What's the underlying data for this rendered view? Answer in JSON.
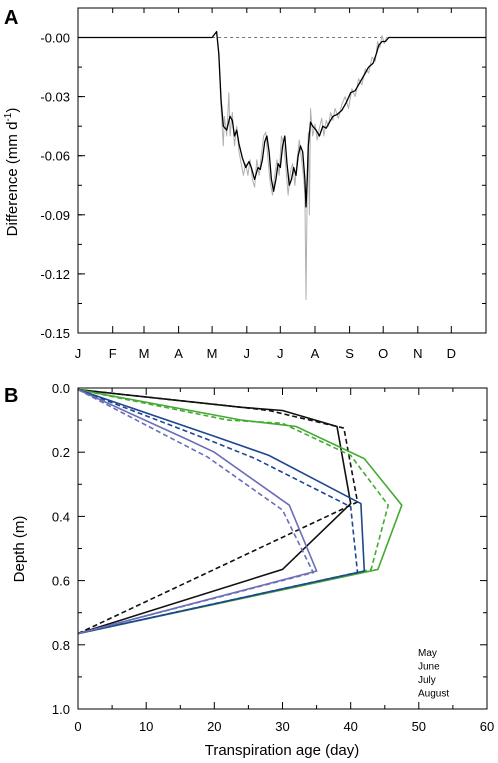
{
  "chart_data": [
    {
      "panel_label": "A",
      "type": "line",
      "ylabel_main": "Difference (mm d",
      "ylabel_sup": "-1",
      "ylabel_close": ")",
      "ylim": [
        -0.15,
        0.015
      ],
      "yticks": [
        {
          "v": 0.0,
          "label": "-0.00"
        },
        {
          "v": -0.03,
          "label": "-0.03"
        },
        {
          "v": -0.06,
          "label": "-0.06"
        },
        {
          "v": -0.09,
          "label": "-0.09"
        },
        {
          "v": -0.12,
          "label": "-0.12"
        },
        {
          "v": -0.15,
          "label": "-0.15"
        }
      ],
      "x_range_days": [
        0,
        365
      ],
      "month_labels": [
        "J",
        "F",
        "M",
        "A",
        "M",
        "J",
        "J",
        "A",
        "S",
        "O",
        "N",
        "D"
      ],
      "month_tick_days": [
        0,
        31,
        59,
        90,
        120,
        151,
        181,
        212,
        243,
        273,
        304,
        334
      ],
      "zero_reference": {
        "style": "dashed",
        "x_from": 120,
        "x_to": 300,
        "y": 0.0
      },
      "series": [
        {
          "style": "smoothed",
          "color": "#000000",
          "points": [
            [
              0,
              0
            ],
            [
              120,
              0
            ],
            [
              124,
              0.003
            ],
            [
              126,
              -0.008
            ],
            [
              128,
              -0.032
            ],
            [
              130,
              -0.045
            ],
            [
              133,
              -0.047
            ],
            [
              136,
              -0.04
            ],
            [
              138,
              -0.042
            ],
            [
              140,
              -0.05
            ],
            [
              142,
              -0.047
            ],
            [
              144,
              -0.054
            ],
            [
              147,
              -0.061
            ],
            [
              150,
              -0.066
            ],
            [
              153,
              -0.063
            ],
            [
              155,
              -0.066
            ],
            [
              158,
              -0.072
            ],
            [
              161,
              -0.066
            ],
            [
              163,
              -0.067
            ],
            [
              165,
              -0.062
            ],
            [
              167,
              -0.053
            ],
            [
              169,
              -0.05
            ],
            [
              171,
              -0.058
            ],
            [
              173,
              -0.072
            ],
            [
              175,
              -0.078
            ],
            [
              177,
              -0.072
            ],
            [
              179,
              -0.064
            ],
            [
              181,
              -0.066
            ],
            [
              183,
              -0.055
            ],
            [
              185,
              -0.05
            ],
            [
              187,
              -0.064
            ],
            [
              189,
              -0.075
            ],
            [
              191,
              -0.072
            ],
            [
              193,
              -0.066
            ],
            [
              195,
              -0.07
            ],
            [
              197,
              -0.06
            ],
            [
              199,
              -0.055
            ],
            [
              201,
              -0.058
            ],
            [
              203,
              -0.072
            ],
            [
              204,
              -0.086
            ],
            [
              205,
              -0.072
            ],
            [
              206,
              -0.055
            ],
            [
              208,
              -0.043
            ],
            [
              210,
              -0.045
            ],
            [
              213,
              -0.047
            ],
            [
              216,
              -0.05
            ],
            [
              219,
              -0.045
            ],
            [
              222,
              -0.046
            ],
            [
              225,
              -0.043
            ],
            [
              228,
              -0.04
            ],
            [
              232,
              -0.039
            ],
            [
              236,
              -0.037
            ],
            [
              240,
              -0.033
            ],
            [
              244,
              -0.028
            ],
            [
              248,
              -0.027
            ],
            [
              252,
              -0.023
            ],
            [
              256,
              -0.019
            ],
            [
              260,
              -0.015
            ],
            [
              264,
              -0.013
            ],
            [
              267,
              -0.008
            ],
            [
              269,
              -0.004
            ],
            [
              272,
              -0.002
            ],
            [
              275,
              -0.002
            ],
            [
              278,
              0
            ],
            [
              365,
              0
            ]
          ]
        },
        {
          "style": "daily",
          "color": "#b0b0b0",
          "points": [
            [
              120,
              0
            ],
            [
              124,
              0.003
            ],
            [
              126,
              -0.01
            ],
            [
              128,
              -0.036
            ],
            [
              130,
              -0.055
            ],
            [
              131,
              -0.04
            ],
            [
              133,
              -0.05
            ],
            [
              135,
              -0.028
            ],
            [
              136,
              -0.05
            ],
            [
              138,
              -0.038
            ],
            [
              140,
              -0.055
            ],
            [
              142,
              -0.045
            ],
            [
              144,
              -0.058
            ],
            [
              146,
              -0.064
            ],
            [
              148,
              -0.07
            ],
            [
              150,
              -0.064
            ],
            [
              152,
              -0.07
            ],
            [
              154,
              -0.062
            ],
            [
              156,
              -0.072
            ],
            [
              158,
              -0.076
            ],
            [
              160,
              -0.062
            ],
            [
              162,
              -0.07
            ],
            [
              164,
              -0.06
            ],
            [
              166,
              -0.05
            ],
            [
              168,
              -0.048
            ],
            [
              170,
              -0.062
            ],
            [
              172,
              -0.074
            ],
            [
              174,
              -0.08
            ],
            [
              176,
              -0.07
            ],
            [
              178,
              -0.062
            ],
            [
              180,
              -0.07
            ],
            [
              182,
              -0.05
            ],
            [
              184,
              -0.054
            ],
            [
              186,
              -0.066
            ],
            [
              188,
              -0.08
            ],
            [
              190,
              -0.068
            ],
            [
              192,
              -0.064
            ],
            [
              194,
              -0.075
            ],
            [
              196,
              -0.062
            ],
            [
              198,
              -0.052
            ],
            [
              200,
              -0.062
            ],
            [
              202,
              -0.072
            ],
            [
              203,
              -0.08
            ],
            [
              204,
              -0.133
            ],
            [
              205,
              -0.078
            ],
            [
              206,
              -0.048
            ],
            [
              207,
              -0.09
            ],
            [
              208,
              -0.036
            ],
            [
              210,
              -0.05
            ],
            [
              212,
              -0.044
            ],
            [
              214,
              -0.052
            ],
            [
              216,
              -0.046
            ],
            [
              218,
              -0.041
            ],
            [
              220,
              -0.05
            ],
            [
              222,
              -0.042
            ],
            [
              224,
              -0.045
            ],
            [
              226,
              -0.038
            ],
            [
              228,
              -0.042
            ],
            [
              230,
              -0.036
            ],
            [
              233,
              -0.041
            ],
            [
              236,
              -0.034
            ],
            [
              239,
              -0.03
            ],
            [
              242,
              -0.036
            ],
            [
              245,
              -0.026
            ],
            [
              248,
              -0.03
            ],
            [
              251,
              -0.021
            ],
            [
              254,
              -0.024
            ],
            [
              257,
              -0.016
            ],
            [
              260,
              -0.018
            ],
            [
              263,
              -0.01
            ],
            [
              266,
              -0.012
            ],
            [
              268,
              -0.002
            ],
            [
              270,
              -0.005
            ],
            [
              272,
              0.001
            ],
            [
              274,
              -0.003
            ],
            [
              276,
              0
            ],
            [
              278,
              0
            ]
          ]
        }
      ]
    },
    {
      "panel_label": "B",
      "type": "line",
      "xlabel": "Transpiration age (day)",
      "ylabel": "Depth (m)",
      "xlim": [
        0,
        60
      ],
      "ylim": [
        0,
        1.0
      ],
      "xticks": [
        {
          "v": 0,
          "label": "0"
        },
        {
          "v": 10,
          "label": "10"
        },
        {
          "v": 20,
          "label": "20"
        },
        {
          "v": 30,
          "label": "30"
        },
        {
          "v": 40,
          "label": "40"
        },
        {
          "v": 50,
          "label": "50"
        },
        {
          "v": 60,
          "label": "60"
        }
      ],
      "yticks": [
        {
          "v": 0.0,
          "label": "0.0"
        },
        {
          "v": 0.2,
          "label": "0.2"
        },
        {
          "v": 0.4,
          "label": "0.4"
        },
        {
          "v": 0.6,
          "label": "0.6"
        },
        {
          "v": 0.8,
          "label": "0.8"
        },
        {
          "v": 1.0,
          "label": "1.0"
        }
      ],
      "legend_placement": "bottom-right",
      "series": [
        {
          "name": "May",
          "color": "#111111",
          "dash": false,
          "points": [
            [
              0,
              0.005
            ],
            [
              24,
              0.06
            ],
            [
              30,
              0.07
            ],
            [
              38,
              0.12
            ],
            [
              40,
              0.36
            ],
            [
              30,
              0.565
            ],
            [
              0,
              0.765
            ]
          ]
        },
        {
          "name": "May",
          "color": "#111111",
          "dash": true,
          "points": [
            [
              0,
              0.005
            ],
            [
              24,
              0.06
            ],
            [
              28,
              0.07
            ],
            [
              39,
              0.125
            ],
            [
              41,
              0.355
            ],
            [
              0,
              0.765
            ]
          ]
        },
        {
          "name": "June",
          "color": "#44aa33",
          "dash": false,
          "points": [
            [
              0,
              0.005
            ],
            [
              24,
              0.1
            ],
            [
              32,
              0.12
            ],
            [
              42,
              0.22
            ],
            [
              47.5,
              0.365
            ],
            [
              44,
              0.565
            ],
            [
              0,
              0.765
            ]
          ]
        },
        {
          "name": "June",
          "color": "#44aa33",
          "dash": true,
          "points": [
            [
              0,
              0.005
            ],
            [
              22,
              0.1
            ],
            [
              30,
              0.11
            ],
            [
              40,
              0.21
            ],
            [
              45.5,
              0.365
            ],
            [
              43,
              0.565
            ],
            [
              0,
              0.765
            ]
          ]
        },
        {
          "name": "July",
          "color": "#1f4690",
          "dash": false,
          "points": [
            [
              0,
              0.005
            ],
            [
              20,
              0.15
            ],
            [
              28,
              0.21
            ],
            [
              41.5,
              0.36
            ],
            [
              42,
              0.57
            ],
            [
              0,
              0.765
            ]
          ]
        },
        {
          "name": "July",
          "color": "#1f4690",
          "dash": true,
          "points": [
            [
              0,
              0.005
            ],
            [
              19,
              0.16
            ],
            [
              26,
              0.22
            ],
            [
              40,
              0.37
            ],
            [
              41,
              0.575
            ],
            [
              0,
              0.765
            ]
          ]
        },
        {
          "name": "August",
          "color": "#6a6eb8",
          "dash": false,
          "points": [
            [
              0,
              0.005
            ],
            [
              16,
              0.16
            ],
            [
              20,
              0.2
            ],
            [
              31,
              0.365
            ],
            [
              35,
              0.57
            ],
            [
              0,
              0.765
            ]
          ]
        },
        {
          "name": "August",
          "color": "#6a6eb8",
          "dash": true,
          "points": [
            [
              0,
              0.005
            ],
            [
              14,
              0.16
            ],
            [
              19,
              0.215
            ],
            [
              30,
              0.38
            ],
            [
              34.5,
              0.575
            ],
            [
              0,
              0.765
            ]
          ]
        }
      ],
      "legend": [
        {
          "label": "May",
          "color": "#111111"
        },
        {
          "label": "June",
          "color": "#44aa33"
        },
        {
          "label": "July",
          "color": "#1f4690"
        },
        {
          "label": "August",
          "color": "#6a6eb8"
        }
      ]
    }
  ]
}
